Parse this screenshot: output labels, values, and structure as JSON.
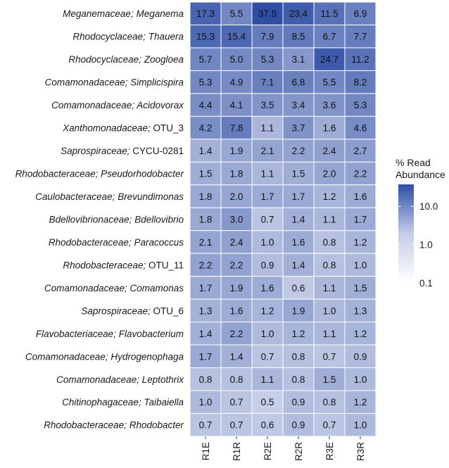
{
  "chart_data": {
    "type": "heatmap",
    "rows": [
      {
        "family": "Meganemaceae",
        "genus": "Meganema",
        "genus_italic": true
      },
      {
        "family": "Rhodocyclaceae",
        "genus": "Thauera",
        "genus_italic": true
      },
      {
        "family": "Rhodocyclaceae",
        "genus": "Zoogloea",
        "genus_italic": true
      },
      {
        "family": "Comamonadaceae",
        "genus": "Simplicispira",
        "genus_italic": true
      },
      {
        "family": "Comamonadaceae",
        "genus": "Acidovorax",
        "genus_italic": true
      },
      {
        "family": "Xanthomonadaceae",
        "genus": "OTU_3",
        "genus_italic": false
      },
      {
        "family": "Saprospiraceae",
        "genus": "CYCU-0281",
        "genus_italic": false
      },
      {
        "family": "Rhodobacteraceae",
        "genus": "Pseudorhodobacter",
        "genus_italic": true
      },
      {
        "family": "Caulobacteraceae",
        "genus": "Brevundimonas",
        "genus_italic": true
      },
      {
        "family": "Bdellovibrionaceae",
        "genus": "Bdellovibrio",
        "genus_italic": true
      },
      {
        "family": "Rhodobacteraceae",
        "genus": "Paracoccus",
        "genus_italic": true
      },
      {
        "family": "Rhodobacteraceae",
        "genus": "OTU_11",
        "genus_italic": false
      },
      {
        "family": "Comamonadaceae",
        "genus": "Comamonas",
        "genus_italic": true
      },
      {
        "family": "Saprospiraceae",
        "genus": "OTU_6",
        "genus_italic": false
      },
      {
        "family": "Flavobacteriaceae",
        "genus": "Flavobacterium",
        "genus_italic": true
      },
      {
        "family": "Comamonadaceae",
        "genus": "Hydrogenophaga",
        "genus_italic": true
      },
      {
        "family": "Comamonadaceae",
        "genus": "Leptothrix",
        "genus_italic": true
      },
      {
        "family": "Chitinophagaceae",
        "genus": "Taibaiella",
        "genus_italic": true
      },
      {
        "family": "Rhodobacteraceae",
        "genus": "Rhodobacter",
        "genus_italic": true
      }
    ],
    "columns": [
      "R1E",
      "R1R",
      "R2E",
      "R2R",
      "R3E",
      "R3R"
    ],
    "values": [
      [
        17.3,
        5.5,
        37.5,
        23.4,
        11.5,
        6.9
      ],
      [
        15.3,
        15.4,
        7.9,
        8.5,
        6.7,
        7.7
      ],
      [
        5.7,
        5.0,
        5.3,
        3.1,
        24.7,
        11.2
      ],
      [
        5.3,
        4.9,
        7.1,
        6.8,
        5.5,
        8.2
      ],
      [
        4.4,
        4.1,
        3.5,
        3.4,
        3.6,
        5.3
      ],
      [
        4.2,
        7.8,
        1.1,
        3.7,
        1.6,
        4.6
      ],
      [
        1.4,
        1.9,
        2.1,
        2.2,
        2.4,
        2.7
      ],
      [
        1.5,
        1.8,
        1.1,
        1.5,
        2.0,
        2.2
      ],
      [
        1.8,
        2.0,
        1.7,
        1.7,
        1.2,
        1.6
      ],
      [
        1.8,
        3.0,
        0.7,
        1.4,
        1.1,
        1.7
      ],
      [
        2.1,
        2.4,
        1.0,
        1.6,
        0.8,
        1.2
      ],
      [
        2.2,
        2.2,
        0.9,
        1.4,
        0.8,
        1.0
      ],
      [
        1.7,
        1.9,
        1.6,
        0.6,
        1.1,
        1.5
      ],
      [
        1.3,
        1.6,
        1.2,
        1.9,
        1.0,
        1.3
      ],
      [
        1.4,
        2.2,
        1.0,
        1.2,
        1.1,
        1.2
      ],
      [
        1.7,
        1.4,
        0.7,
        0.8,
        0.7,
        0.9
      ],
      [
        0.8,
        0.8,
        1.1,
        0.8,
        1.5,
        1.0
      ],
      [
        1.0,
        0.7,
        0.5,
        0.9,
        0.8,
        1.2
      ],
      [
        0.7,
        0.7,
        0.6,
        0.9,
        0.7,
        1.0
      ]
    ],
    "value_format": "one_decimal",
    "legend": {
      "title_line1": "% Read",
      "title_line2": "Abundance",
      "scale": "log10",
      "ticks": [
        0.1,
        1.0,
        10.0
      ],
      "tick_labels": [
        "0.1",
        "1.0",
        "10.0"
      ],
      "range": [
        0.1,
        37.5
      ],
      "color_low": "#ffffff",
      "color_high": "#2e4ea6",
      "placement": "right"
    },
    "panel_background": "#ebebeb",
    "cell_border_color": "#ffffff"
  }
}
